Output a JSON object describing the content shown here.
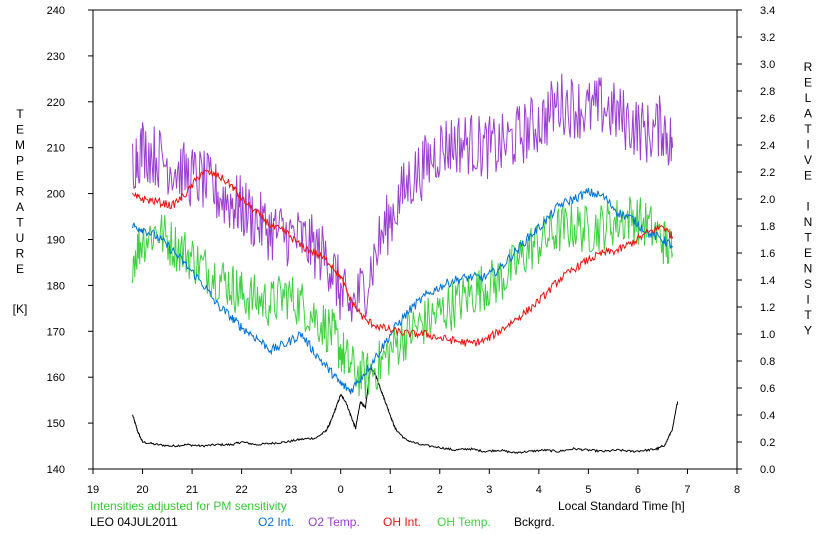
{
  "chart_data": {
    "type": "line",
    "title": "",
    "xlabel": "Local Standard Time [h]",
    "ylabel_left": "TEMPERATURE",
    "ylabel_left_unit": "[K]",
    "ylabel_right": "RELATIVE INTENSITY",
    "ylim_left": [
      140,
      240
    ],
    "ylim_right": [
      0.0,
      3.4
    ],
    "x_range": [
      19,
      8
    ],
    "x_ticks": [
      "19",
      "20",
      "21",
      "22",
      "23",
      "0",
      "1",
      "2",
      "3",
      "4",
      "5",
      "6",
      "7",
      "8"
    ],
    "y_left_ticks": [
      "140",
      "150",
      "160",
      "170",
      "180",
      "190",
      "200",
      "210",
      "220",
      "230",
      "240"
    ],
    "y_right_ticks": [
      "0.0",
      "0.2",
      "0.4",
      "0.6",
      "0.8",
      "1.0",
      "1.2",
      "1.4",
      "1.6",
      "1.8",
      "2.0",
      "2.2",
      "2.4",
      "2.6",
      "2.8",
      "3.0",
      "3.2",
      "3.4"
    ],
    "grid": false,
    "legend_position": "bottom",
    "note": "Intensities adjusted for PM sensitivity",
    "station_label": "LEO 04JUL2011",
    "series": [
      {
        "name": "O2 Int.",
        "axis": "right",
        "color": "#0072d6",
        "x": [
          19.8,
          20.0,
          20.3,
          20.6,
          20.9,
          21.2,
          21.5,
          21.8,
          22.0,
          22.3,
          22.6,
          22.9,
          23.2,
          23.5,
          23.8,
          24.0,
          24.2,
          24.5,
          24.8,
          25.1,
          25.4,
          25.7,
          26.0,
          26.3,
          26.6,
          26.9,
          27.2,
          27.5,
          27.8,
          28.1,
          28.4,
          28.7,
          29.0,
          29.3,
          29.6,
          29.9,
          30.2,
          30.5,
          30.7
        ],
        "y": [
          1.8,
          1.78,
          1.72,
          1.62,
          1.5,
          1.38,
          1.22,
          1.12,
          1.05,
          0.97,
          0.88,
          0.93,
          1.0,
          0.85,
          0.72,
          0.63,
          0.58,
          0.72,
          0.88,
          1.05,
          1.18,
          1.28,
          1.35,
          1.4,
          1.42,
          1.42,
          1.48,
          1.6,
          1.72,
          1.82,
          1.95,
          2.0,
          2.05,
          2.02,
          1.9,
          1.85,
          1.75,
          1.7,
          1.65
        ]
      },
      {
        "name": "O2 Temp.",
        "axis": "left",
        "color": "#9b3fd1",
        "x": [
          19.8,
          20.0,
          20.3,
          20.6,
          20.9,
          21.2,
          21.5,
          21.8,
          22.0,
          22.3,
          22.6,
          22.9,
          23.2,
          23.5,
          23.8,
          24.0,
          24.2,
          24.5,
          24.8,
          25.1,
          25.4,
          25.7,
          26.0,
          26.3,
          26.6,
          26.9,
          27.2,
          27.5,
          27.8,
          28.1,
          28.4,
          28.7,
          29.0,
          29.3,
          29.6,
          29.9,
          30.2,
          30.5,
          30.7
        ],
        "y": [
          207,
          210,
          208,
          206,
          204,
          203,
          200,
          198,
          197,
          194,
          192,
          191,
          190,
          188,
          185,
          178,
          175,
          180,
          190,
          197,
          203,
          206,
          210,
          211,
          211,
          210,
          210,
          212,
          214,
          216,
          220,
          219,
          218,
          219,
          217,
          215,
          213,
          215,
          210
        ]
      },
      {
        "name": "OH Int.",
        "axis": "right",
        "color": "#e8150c",
        "x": [
          19.8,
          20.0,
          20.3,
          20.6,
          20.9,
          21.2,
          21.5,
          21.8,
          22.0,
          22.3,
          22.6,
          22.9,
          23.2,
          23.5,
          23.8,
          24.0,
          24.2,
          24.5,
          24.8,
          25.1,
          25.4,
          25.7,
          26.0,
          26.3,
          26.6,
          26.9,
          27.2,
          27.5,
          27.8,
          28.1,
          28.4,
          28.7,
          29.0,
          29.3,
          29.6,
          29.9,
          30.2,
          30.5,
          30.7
        ],
        "y": [
          2.02,
          2.0,
          1.98,
          1.95,
          2.05,
          2.2,
          2.18,
          2.1,
          2.0,
          1.9,
          1.8,
          1.75,
          1.65,
          1.6,
          1.52,
          1.42,
          1.25,
          1.1,
          1.05,
          1.02,
          1.0,
          1.0,
          0.97,
          0.95,
          0.93,
          0.95,
          1.02,
          1.1,
          1.18,
          1.28,
          1.4,
          1.48,
          1.55,
          1.6,
          1.62,
          1.68,
          1.75,
          1.8,
          1.72
        ]
      },
      {
        "name": "OH Temp.",
        "axis": "left",
        "color": "#3fd13f",
        "x": [
          19.8,
          20.0,
          20.3,
          20.6,
          20.9,
          21.2,
          21.5,
          21.8,
          22.0,
          22.3,
          22.6,
          22.9,
          23.2,
          23.5,
          23.8,
          24.0,
          24.2,
          24.5,
          24.8,
          25.1,
          25.4,
          25.7,
          26.0,
          26.3,
          26.6,
          26.9,
          27.2,
          27.5,
          27.8,
          28.1,
          28.4,
          28.7,
          29.0,
          29.3,
          29.6,
          29.9,
          30.2,
          30.5,
          30.7
        ],
        "y": [
          186,
          190,
          192,
          189,
          187,
          184,
          182,
          180,
          178,
          177,
          176,
          178,
          176,
          173,
          170,
          166,
          162,
          160,
          163,
          167,
          170,
          172,
          174,
          176,
          178,
          180,
          181,
          184,
          188,
          190,
          192,
          193,
          192,
          193,
          194,
          195,
          193,
          190,
          187
        ]
      },
      {
        "name": "Bckgrd.",
        "axis": "right",
        "color": "#000000",
        "x": [
          19.8,
          19.9,
          20.0,
          20.3,
          20.6,
          20.9,
          21.2,
          21.5,
          21.8,
          22.0,
          22.3,
          22.6,
          22.9,
          23.2,
          23.5,
          23.7,
          23.8,
          23.9,
          24.0,
          24.1,
          24.2,
          24.3,
          24.4,
          24.5,
          24.6,
          24.7,
          24.8,
          24.9,
          25.0,
          25.1,
          25.3,
          25.6,
          26.0,
          26.3,
          26.6,
          26.9,
          27.2,
          27.5,
          27.8,
          28.1,
          28.4,
          28.7,
          29.0,
          29.3,
          29.6,
          29.9,
          30.2,
          30.4,
          30.55,
          30.7,
          30.8
        ],
        "y": [
          0.4,
          0.28,
          0.2,
          0.18,
          0.17,
          0.18,
          0.17,
          0.18,
          0.18,
          0.2,
          0.18,
          0.19,
          0.2,
          0.22,
          0.23,
          0.28,
          0.35,
          0.45,
          0.55,
          0.5,
          0.4,
          0.3,
          0.5,
          0.45,
          0.75,
          0.7,
          0.6,
          0.5,
          0.4,
          0.3,
          0.22,
          0.18,
          0.16,
          0.14,
          0.15,
          0.13,
          0.14,
          0.12,
          0.13,
          0.14,
          0.13,
          0.15,
          0.14,
          0.13,
          0.14,
          0.13,
          0.14,
          0.15,
          0.18,
          0.3,
          0.5
        ]
      }
    ]
  }
}
